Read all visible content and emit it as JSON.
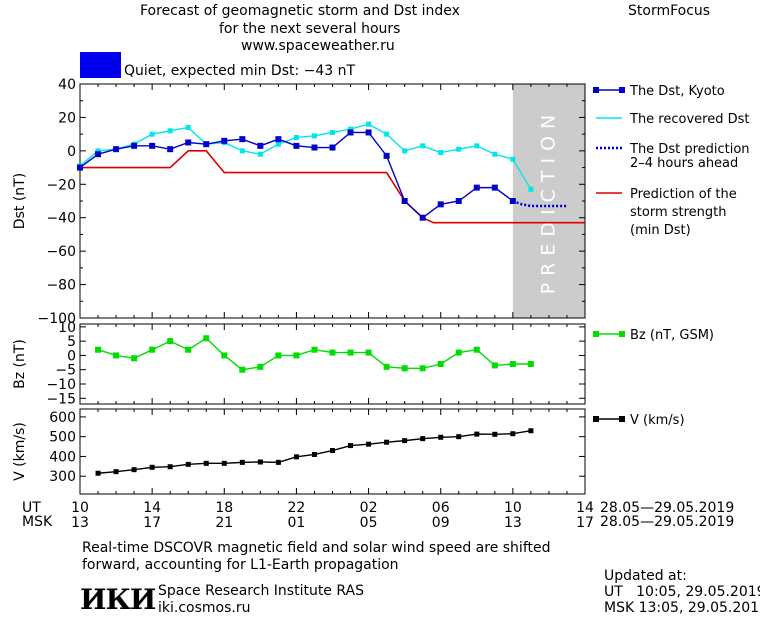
{
  "header": {
    "title_lines": [
      "Forecast of geomagnetic storm and Dst index",
      "for the next several hours",
      "www.spaceweather.ru"
    ],
    "brand": "StormFocus",
    "status_text": "Quiet, expected min Dst: −43 nT",
    "status_color": "#0000ee"
  },
  "colors": {
    "dst_kyoto": "#0000cc",
    "dst_recovered": "#00e5ee",
    "dst_prediction": "#0000cc",
    "storm_strength": "#dd0000",
    "bz": "#00dd00",
    "v": "#000000",
    "prediction_zone": "#cccccc"
  },
  "chart_data": [
    {
      "type": "line",
      "ylabel": "Dst (nT)",
      "ylim": [
        -100,
        40
      ],
      "yticks": [
        40,
        20,
        0,
        -20,
        -40,
        -60,
        -80,
        -100
      ],
      "xlim": [
        10,
        38
      ],
      "prediction_label": "PREDICTION",
      "prediction_range": [
        34,
        38
      ],
      "series": [
        {
          "name": "The Dst, Kyoto",
          "x": [
            10,
            11,
            12,
            13,
            14,
            15,
            16,
            17,
            18,
            19,
            20,
            21,
            22,
            23,
            24,
            25,
            26,
            27,
            28,
            29,
            30,
            31,
            32,
            33,
            34
          ],
          "y": [
            -10,
            -2,
            1,
            3,
            3,
            1,
            5,
            4,
            6,
            7,
            3,
            7,
            3,
            2,
            2,
            11,
            11,
            -3,
            -30,
            -40,
            -32,
            -30,
            -22,
            -22,
            -30
          ]
        },
        {
          "name": "The recovered Dst",
          "x": [
            10,
            11,
            12,
            13,
            14,
            15,
            16,
            17,
            18,
            19,
            20,
            21,
            22,
            23,
            24,
            25,
            26,
            27,
            28,
            29,
            30,
            31,
            32,
            33,
            34,
            35
          ],
          "y": [
            -9,
            0,
            1,
            4,
            10,
            12,
            14,
            4,
            5,
            0,
            -2,
            4,
            8,
            9,
            11,
            13,
            16,
            10,
            0,
            3,
            -1,
            1,
            3,
            -2,
            -5,
            -23
          ]
        },
        {
          "name": "The Dst prediction 2–4 hours ahead",
          "x": [
            34,
            34.5,
            35,
            35.5,
            36,
            36.5,
            37
          ],
          "y": [
            -30,
            -32,
            -33,
            -33,
            -33,
            -33,
            -33
          ]
        },
        {
          "name": "Prediction of the storm strength (min Dst)",
          "x": [
            10,
            15,
            16,
            17,
            18,
            27,
            28,
            29,
            29.6,
            38
          ],
          "y": [
            -10,
            -10,
            0,
            0,
            -13,
            -13,
            -30,
            -40,
            -43,
            -43
          ]
        }
      ],
      "legend": [
        "The Dst, Kyoto",
        "The recovered Dst",
        "The Dst prediction",
        "2–4 hours ahead",
        "Prediction of the",
        "storm strength",
        "(min Dst)"
      ]
    },
    {
      "type": "line",
      "ylabel": "Bz (nT)",
      "ylim": [
        -17,
        11
      ],
      "yticks": [
        10,
        5,
        0,
        -5,
        -10,
        -15
      ],
      "series": [
        {
          "name": "Bz (nT, GSM)",
          "x": [
            11,
            12,
            13,
            14,
            15,
            16,
            17,
            18,
            19,
            20,
            21,
            22,
            23,
            24,
            25,
            26,
            27,
            28,
            29,
            30,
            31,
            32,
            33,
            34,
            35
          ],
          "y": [
            2,
            0,
            -1,
            2,
            5,
            2,
            6,
            0,
            -5,
            -4,
            0,
            0,
            2,
            1,
            1,
            1,
            -4,
            -4.5,
            -4.5,
            -3,
            1,
            2,
            -3.5,
            -3,
            -3
          ]
        }
      ],
      "legend": [
        "Bz (nT, GSM)"
      ]
    },
    {
      "type": "line",
      "ylabel": "V (km/s)",
      "ylim": [
        210,
        640
      ],
      "yticks": [
        600,
        500,
        400,
        300
      ],
      "series": [
        {
          "name": "V (km/s)",
          "x": [
            11,
            12,
            13,
            14,
            15,
            16,
            17,
            18,
            19,
            20,
            21,
            22,
            23,
            24,
            25,
            26,
            27,
            28,
            29,
            30,
            31,
            32,
            33,
            34,
            35
          ],
          "y": [
            315,
            323,
            333,
            345,
            348,
            360,
            365,
            365,
            370,
            372,
            370,
            398,
            410,
            430,
            455,
            462,
            472,
            480,
            490,
            497,
            500,
            513,
            512,
            515,
            530
          ]
        }
      ],
      "legend": [
        "V (km/s)"
      ]
    }
  ],
  "x_axis": {
    "ticks": [
      10,
      14,
      18,
      22,
      26,
      30,
      34,
      38
    ],
    "ut_label": "UT",
    "msk_label": "MSK",
    "ut_ticks": [
      "10",
      "14",
      "18",
      "22",
      "02",
      "06",
      "10",
      "14"
    ],
    "msk_ticks": [
      "13",
      "17",
      "21",
      "01",
      "05",
      "09",
      "13",
      "17"
    ],
    "date_range_ut": "28.05—29.05.2019",
    "date_range_msk": "28.05—29.05.2019"
  },
  "footer": {
    "note_lines": [
      "Real-time DSCOVR magnetic field and solar wind speed are shifted",
      "forward, accounting for L1-Earth propagation"
    ],
    "logo_text": "ИКИ",
    "institute": "Space Research Institute RAS",
    "website": "iki.cosmos.ru",
    "updated_label": "Updated at:",
    "updated_ut": "UT   10:05, 29.05.2019",
    "updated_msk": "MSK 13:05, 29.05.2019"
  }
}
